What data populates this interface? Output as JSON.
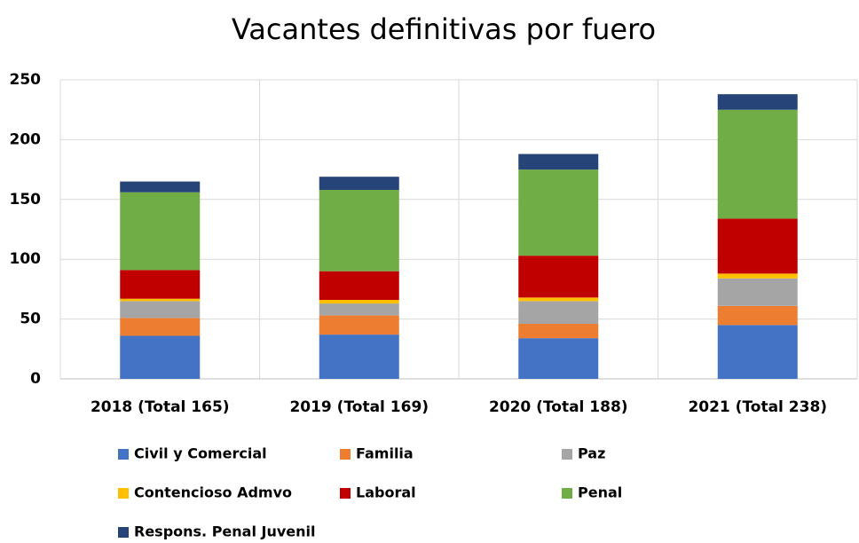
{
  "chart_data": {
    "type": "stacked_bar",
    "title": "Vacantes definitivas por fuero",
    "categories": [
      "2018 (Total 165)",
      "2019 (Total 169)",
      "2020 (Total 188)",
      "2021 (Total 238)"
    ],
    "series": [
      {
        "name": "Civil y Comercial",
        "color": "#4472c4",
        "values": [
          36,
          37,
          34,
          45
        ]
      },
      {
        "name": "Familia",
        "color": "#ed7d31",
        "values": [
          15,
          16,
          12,
          16
        ]
      },
      {
        "name": "Paz",
        "color": "#a5a5a5",
        "values": [
          14,
          10,
          19,
          23
        ]
      },
      {
        "name": "Contencioso Admvo",
        "color": "#ffc000",
        "values": [
          2,
          3,
          3,
          4
        ]
      },
      {
        "name": "Laboral",
        "color": "#c00000",
        "values": [
          24,
          24,
          35,
          46
        ]
      },
      {
        "name": "Penal",
        "color": "#70ad47",
        "values": [
          65,
          68,
          72,
          91
        ]
      },
      {
        "name": "Respons. Penal Juvenil",
        "color": "#264478",
        "values": [
          9,
          11,
          13,
          13
        ]
      }
    ],
    "ylim": [
      0,
      250
    ],
    "yticks": [
      0,
      50,
      100,
      150,
      200,
      250
    ],
    "grid": true
  }
}
